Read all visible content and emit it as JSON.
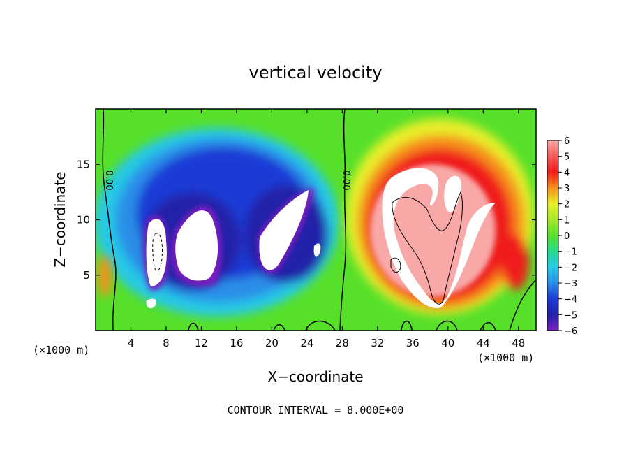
{
  "chart_data": {
    "type": "heatmap",
    "title": "vertical velocity",
    "xlabel": "X−coordinate",
    "ylabel": "Z−coordinate",
    "x_unit_left": "(×1000 m)",
    "x_unit_right": "(×1000 m)",
    "footer": "CONTOUR INTERVAL = 8.000E+00",
    "xlim": [
      0,
      50
    ],
    "ylim": [
      0,
      20
    ],
    "x_ticks": [
      4,
      8,
      12,
      16,
      20,
      24,
      28,
      32,
      36,
      40,
      44,
      48
    ],
    "y_ticks": [
      5,
      10,
      15
    ],
    "colorbar": {
      "range": [
        -6,
        6
      ],
      "labels": [
        "6",
        "5",
        "4",
        "3",
        "2",
        "1",
        "0",
        "−1",
        "−2",
        "−3",
        "−4",
        "−5",
        "−6"
      ],
      "values": [
        6,
        5,
        4,
        3,
        2,
        1,
        0,
        -1,
        -2,
        -3,
        -4,
        -5,
        -6
      ]
    },
    "contour_labels": [
      {
        "text": "0.00",
        "x": 1.5,
        "z": 13.5
      },
      {
        "text": "0.00",
        "x": 28.5,
        "z": 13.5
      }
    ],
    "features": [
      {
        "name": "downdraft-region",
        "sign": "negative",
        "x_range": [
          4,
          27
        ],
        "z_range": [
          1,
          17
        ]
      },
      {
        "name": "updraft-region",
        "sign": "positive",
        "x_range": [
          29,
          49
        ],
        "z_range": [
          1,
          17
        ]
      }
    ]
  },
  "colors": {
    "strong_negative": "#7a1fc0",
    "negative": "#1d3bd6",
    "weak_negative": "#25c9e6",
    "zero": "#57e02a",
    "weak_positive": "#e8ef2a",
    "positive": "#f5901c",
    "strong_positive": "#f01a1a",
    "saturated_positive": "#f9a8a8"
  }
}
